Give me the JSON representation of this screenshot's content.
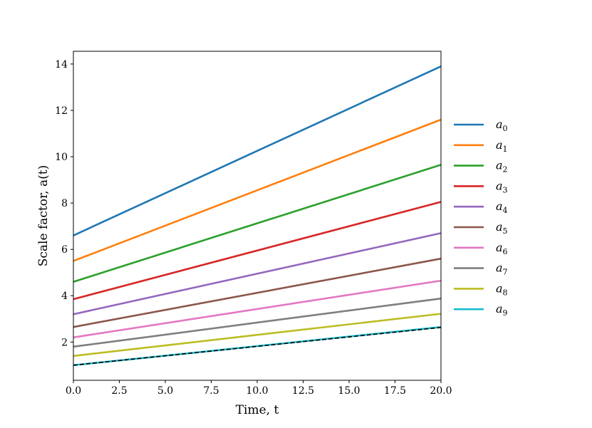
{
  "chart_data": {
    "type": "line",
    "xlabel": "Time, t",
    "ylabel": "Scale factor, a(t)",
    "xlim": [
      0,
      20
    ],
    "ylim": [
      0.35,
      14.55
    ],
    "xticks": [
      "0.0",
      "2.5",
      "5.0",
      "7.5",
      "10.0",
      "12.5",
      "15.0",
      "17.5",
      "20.0"
    ],
    "yticks": [
      "2",
      "4",
      "6",
      "8",
      "10",
      "12",
      "14"
    ],
    "grid": false,
    "legend": "right, outside plot",
    "series": [
      {
        "name": "a0",
        "label_base": "a",
        "label_sub": "0",
        "color": "#1f77b4",
        "x": [
          0,
          20
        ],
        "y": [
          6.6,
          13.9
        ]
      },
      {
        "name": "a1",
        "label_base": "a",
        "label_sub": "1",
        "color": "#ff7f0e",
        "x": [
          0,
          20
        ],
        "y": [
          5.5,
          11.6
        ]
      },
      {
        "name": "a2",
        "label_base": "a",
        "label_sub": "2",
        "color": "#2ca02c",
        "x": [
          0,
          20
        ],
        "y": [
          4.6,
          9.65
        ]
      },
      {
        "name": "a3",
        "label_base": "a",
        "label_sub": "3",
        "color": "#d62728",
        "x": [
          0,
          20
        ],
        "y": [
          3.85,
          8.05
        ]
      },
      {
        "name": "a4",
        "label_base": "a",
        "label_sub": "4",
        "color": "#9467bd",
        "x": [
          0,
          20
        ],
        "y": [
          3.2,
          6.7
        ]
      },
      {
        "name": "a5",
        "label_base": "a",
        "label_sub": "5",
        "color": "#8c564b",
        "x": [
          0,
          20
        ],
        "y": [
          2.65,
          5.6
        ]
      },
      {
        "name": "a6",
        "label_base": "a",
        "label_sub": "6",
        "color": "#e377c2",
        "x": [
          0,
          20
        ],
        "y": [
          2.2,
          4.65
        ]
      },
      {
        "name": "a7",
        "label_base": "a",
        "label_sub": "7",
        "color": "#7f7f7f",
        "x": [
          0,
          20
        ],
        "y": [
          1.8,
          3.88
        ]
      },
      {
        "name": "a8",
        "label_base": "a",
        "label_sub": "8",
        "color": "#bcbd22",
        "x": [
          0,
          20
        ],
        "y": [
          1.4,
          3.22
        ]
      },
      {
        "name": "a9",
        "label_base": "a",
        "label_sub": "9",
        "color": "#17becf",
        "x": [
          0,
          20
        ],
        "y": [
          1.0,
          2.65
        ]
      }
    ],
    "reference": {
      "color": "#000000",
      "style": "dashed",
      "x": [
        0,
        20
      ],
      "y": [
        1.0,
        2.63
      ]
    }
  }
}
